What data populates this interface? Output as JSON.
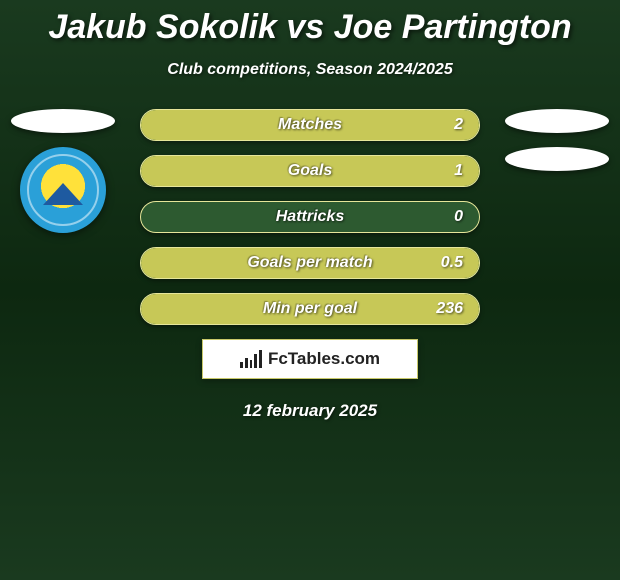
{
  "title": "Jakub Sokolik vs Joe Partington",
  "subtitle": "Club competitions, Season 2024/2025",
  "date": "12 february 2025",
  "branding": {
    "text": "FcTables.com"
  },
  "row_style": {
    "height": 32,
    "radius": 16,
    "gap": 14,
    "label_fontsize": 16,
    "value_fontsize": 16,
    "text_color": "#ffffff",
    "shadow": "0 2px 5px rgba(0,0,0,0.4)"
  },
  "palette": {
    "bar_fill": "#c7c857",
    "bar_border": "#e6e69a",
    "bar_empty": "#2d5a30",
    "bg_gradient_top": "#1a3a1f",
    "bg_gradient_mid": "#0d2810",
    "title_color": "#ffffff",
    "ellipse_color": "#ffffff",
    "badge_outer": "#2aa0d8",
    "badge_inner": "#ffe13a",
    "badge_tri": "#1e5aa0"
  },
  "stats": [
    {
      "label": "Matches",
      "value": "2",
      "fill_pct": 100
    },
    {
      "label": "Goals",
      "value": "1",
      "fill_pct": 100
    },
    {
      "label": "Hattricks",
      "value": "0",
      "fill_pct": 0
    },
    {
      "label": "Goals per match",
      "value": "0.5",
      "fill_pct": 100
    },
    {
      "label": "Min per goal",
      "value": "236",
      "fill_pct": 100
    }
  ],
  "left_badges": {
    "ellipses": 1,
    "club_badge": true
  },
  "right_badges": {
    "ellipses": 2,
    "club_badge": false
  }
}
